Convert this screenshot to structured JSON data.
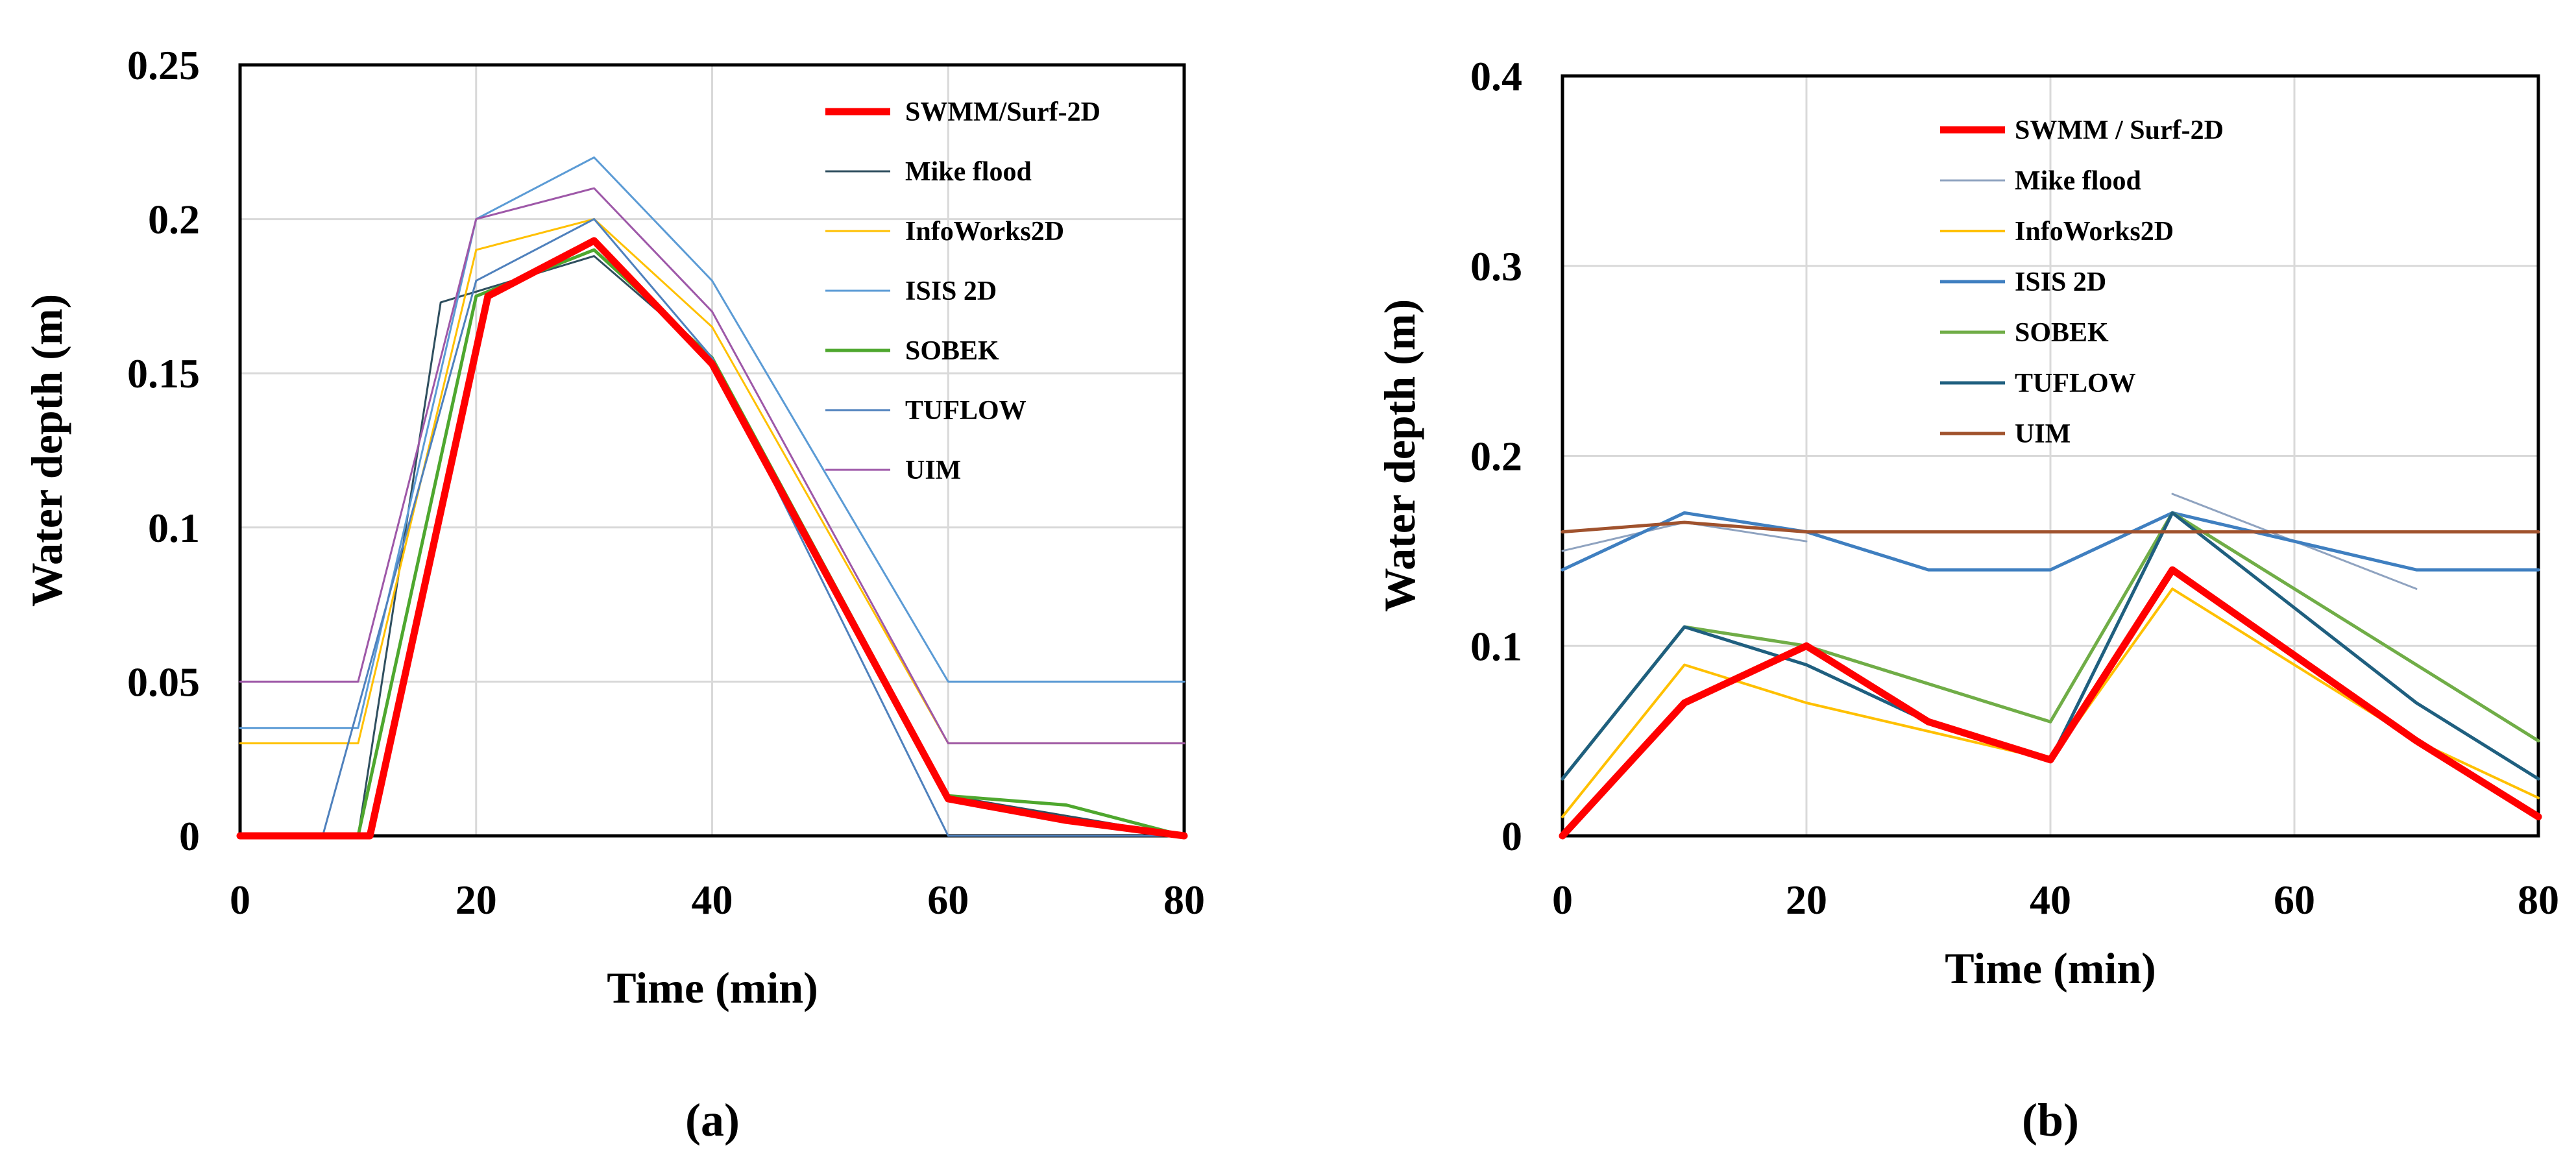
{
  "chart_data": [
    {
      "type": "line",
      "panel_label": "(a)",
      "xlabel": "Time (min)",
      "ylabel": "Water depth (m)",
      "xlim": [
        0,
        80
      ],
      "ylim": [
        0,
        0.25
      ],
      "xticks": [
        0,
        20,
        40,
        60,
        80
      ],
      "yticks": [
        0,
        0.05,
        0.1,
        0.15,
        0.2,
        0.25
      ],
      "ytick_labels": [
        "0",
        "0.05",
        "0.1",
        "0.15",
        "0.2",
        "0.25"
      ],
      "grid": true,
      "legend_position": "top-right",
      "series": [
        {
          "name": "SWMM/Surf-2D",
          "color": "#ff0000",
          "width": 11,
          "x": [
            0,
            11,
            21,
            30,
            40,
            60,
            70,
            80
          ],
          "y": [
            0,
            0,
            0.175,
            0.193,
            0.153,
            0.012,
            0.005,
            0
          ]
        },
        {
          "name": "Mike flood",
          "color": "#2f4f5f",
          "width": 3,
          "x": [
            0,
            10,
            17,
            30,
            40,
            60,
            80
          ],
          "y": [
            0,
            0,
            0.173,
            0.188,
            0.155,
            0.013,
            0
          ]
        },
        {
          "name": "InfoWorks2D",
          "color": "#ffc000",
          "width": 3,
          "x": [
            0,
            10,
            20,
            30,
            40,
            60,
            80
          ],
          "y": [
            0.03,
            0.03,
            0.19,
            0.2,
            0.165,
            0.03,
            0.03
          ]
        },
        {
          "name": "ISIS 2D",
          "color": "#5b9bd5",
          "width": 3,
          "x": [
            0,
            10,
            20,
            30,
            40,
            60,
            80
          ],
          "y": [
            0.035,
            0.035,
            0.2,
            0.22,
            0.18,
            0.05,
            0.05
          ]
        },
        {
          "name": "SOBEK",
          "color": "#4ea72e",
          "width": 5,
          "x": [
            0,
            10,
            20,
            30,
            40,
            60,
            70,
            80
          ],
          "y": [
            0,
            0,
            0.175,
            0.19,
            0.155,
            0.013,
            0.01,
            0
          ]
        },
        {
          "name": "TUFLOW",
          "color": "#4f81bd",
          "width": 3,
          "x": [
            0,
            7,
            20,
            30,
            40,
            60,
            80
          ],
          "y": [
            0,
            0,
            0.18,
            0.2,
            0.155,
            0,
            0
          ]
        },
        {
          "name": "UIM",
          "color": "#9e58a8",
          "width": 3,
          "x": [
            0,
            10,
            20,
            30,
            40,
            60,
            80
          ],
          "y": [
            0.05,
            0.05,
            0.2,
            0.21,
            0.17,
            0.03,
            0.03
          ]
        }
      ]
    },
    {
      "type": "line",
      "panel_label": "(b)",
      "xlabel": "Time (min)",
      "ylabel": "Water depth (m)",
      "xlim": [
        0,
        80
      ],
      "ylim": [
        0,
        0.4
      ],
      "xticks": [
        0,
        20,
        40,
        60,
        80
      ],
      "yticks": [
        0,
        0.1,
        0.2,
        0.3,
        0.4
      ],
      "ytick_labels": [
        "0",
        "0.1",
        "0.2",
        "0.3",
        "0.4"
      ],
      "grid": true,
      "legend_position": "top-right",
      "series": [
        {
          "name": "SWMM / Surf-2D",
          "color": "#ff0000",
          "width": 11,
          "x": [
            0,
            10,
            20,
            30,
            40,
            50,
            60,
            70,
            80
          ],
          "y": [
            0,
            0.07,
            0.1,
            0.06,
            0.04,
            0.14,
            0.095,
            0.05,
            0.01
          ]
        },
        {
          "name": "Mike flood",
          "color": "#8fa3c0",
          "width": 3,
          "x": [
            0,
            10,
            20,
            30,
            40,
            50,
            60,
            70
          ],
          "y": [
            0.15,
            0.165,
            0.155,
            null,
            null,
            0.18,
            0.155,
            0.13
          ]
        },
        {
          "name": "InfoWorks2D",
          "color": "#ffc000",
          "width": 4,
          "x": [
            0,
            10,
            20,
            30,
            40,
            50,
            60,
            70,
            80
          ],
          "y": [
            0.01,
            0.09,
            0.07,
            0.055,
            0.04,
            0.13,
            0.09,
            0.05,
            0.02
          ]
        },
        {
          "name": "ISIS 2D",
          "color": "#3f7fc0",
          "width": 5,
          "x": [
            0,
            10,
            20,
            30,
            40,
            50,
            60,
            70,
            80
          ],
          "y": [
            0.14,
            0.17,
            0.16,
            0.14,
            0.14,
            0.17,
            0.155,
            0.14,
            0.14
          ]
        },
        {
          "name": "SOBEK",
          "color": "#70ad47",
          "width": 5,
          "x": [
            0,
            10,
            20,
            30,
            40,
            50,
            60,
            70,
            80
          ],
          "y": [
            0.03,
            0.11,
            0.1,
            0.08,
            0.06,
            0.17,
            0.13,
            0.09,
            0.05
          ]
        },
        {
          "name": "TUFLOW",
          "color": "#1f5f7f",
          "width": 5,
          "x": [
            0,
            10,
            20,
            30,
            40,
            50,
            60,
            70,
            80
          ],
          "y": [
            0.03,
            0.11,
            0.09,
            0.06,
            0.04,
            0.17,
            0.12,
            0.07,
            0.03
          ]
        },
        {
          "name": "UIM",
          "color": "#a0522d",
          "width": 5,
          "x": [
            0,
            10,
            20,
            30,
            40,
            50,
            60,
            70,
            80
          ],
          "y": [
            0.16,
            0.165,
            0.16,
            0.16,
            0.16,
            0.16,
            0.16,
            0.16,
            0.16
          ]
        }
      ]
    }
  ]
}
